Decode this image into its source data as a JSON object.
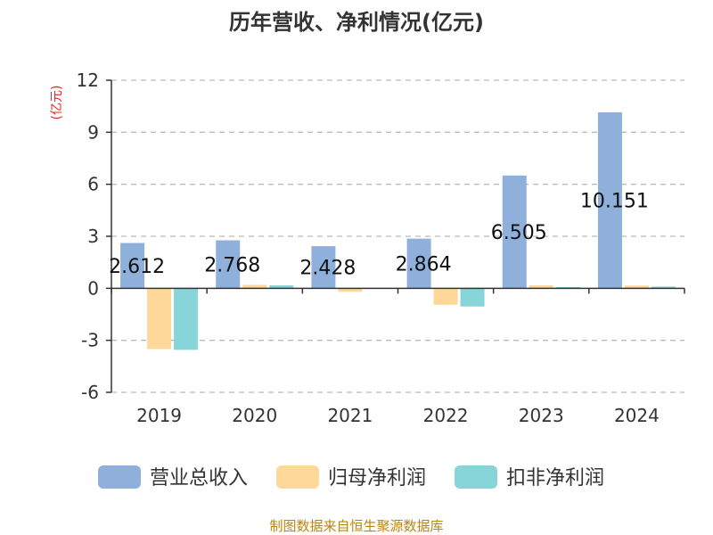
{
  "chart_data": {
    "type": "bar",
    "title": "历年营收、净利情况(亿元)",
    "unit_label": "(亿元)",
    "categories": [
      "2019",
      "2020",
      "2021",
      "2022",
      "2023",
      "2024"
    ],
    "series": [
      {
        "name": "营业总收入",
        "color": "#8eb0db",
        "values": [
          2.612,
          2.768,
          2.428,
          2.864,
          6.505,
          10.151
        ],
        "data_labels": [
          "2.612",
          "2.768",
          "2.428",
          "2.864",
          "6.505",
          "10.151"
        ]
      },
      {
        "name": "归母净利润",
        "color": "#fdd899",
        "values": [
          -3.5,
          0.2,
          -0.2,
          -0.95,
          0.17,
          0.16
        ]
      },
      {
        "name": "扣非净利润",
        "color": "#87d5d8",
        "values": [
          -3.55,
          0.17,
          -0.02,
          -1.05,
          0.07,
          0.1
        ]
      }
    ],
    "ylim": [
      -6,
      12
    ],
    "yticks": [
      -6,
      -3,
      0,
      3,
      6,
      9,
      12
    ],
    "ytick_labels": [
      "-6",
      "-3",
      "0",
      "3",
      "6",
      "9",
      "12"
    ],
    "grid": true,
    "legend_position": "bottom"
  },
  "source_text": "制图数据来自恒生聚源数据库"
}
